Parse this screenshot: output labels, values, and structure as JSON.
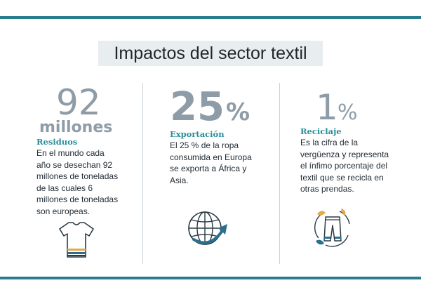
{
  "title": "Impactos del sector textil",
  "colors": {
    "accent": "#2a7d8c",
    "label": "#2a8d99",
    "number": "#8e9ca7",
    "icon_orange": "#e3a94b",
    "icon_blue": "#2b6f8f"
  },
  "columns": [
    {
      "number": "92",
      "unit": "millones",
      "label": "Residuos",
      "text": [
        "En el mundo cada",
        "año se desechan 92",
        "millones de toneladas",
        "de las cuales 6",
        "millones de toneladas",
        "son europeas."
      ],
      "icon": "t-shirt-icon"
    },
    {
      "number": "25",
      "unit": "%",
      "label": "Exportación",
      "text": [
        "El 25 % de la ropa",
        "consumida en Europa",
        "se exporta a África y",
        "Asia."
      ],
      "icon": "globe-export-icon"
    },
    {
      "number": "1",
      "unit": "%",
      "label": "Reciclaje",
      "text": [
        "Es la cifra de la",
        "vergüenza y representa",
        "el ínfimo porcentaje del",
        "textil que se recicla en",
        "otras prendas."
      ],
      "icon": "pants-recycle-icon"
    }
  ]
}
